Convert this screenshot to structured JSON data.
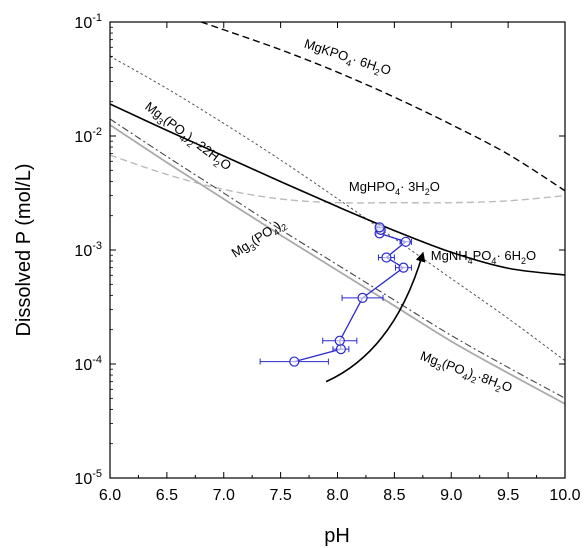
{
  "chart_data": {
    "type": "line",
    "xlabel": "pH",
    "ylabel": "Dissolved P (mol/L)",
    "xlim": [
      6.0,
      10.0
    ],
    "ylim": [
      1e-05,
      0.1
    ],
    "yscale": "log",
    "grid": false,
    "x_ticks": [
      "6.0",
      "6.5",
      "7.0",
      "7.5",
      "8.0",
      "8.5",
      "9.0",
      "9.5",
      "10.0"
    ],
    "x_tick_values": [
      6.0,
      6.5,
      7.0,
      7.5,
      8.0,
      8.5,
      9.0,
      9.5,
      10.0
    ],
    "y_ticks": [
      {
        "value": 1e-05,
        "base": "10",
        "exp": "-5"
      },
      {
        "value": 0.0001,
        "base": "10",
        "exp": "-4"
      },
      {
        "value": 0.001,
        "base": "10",
        "exp": "-3"
      },
      {
        "value": 0.01,
        "base": "10",
        "exp": "-2"
      },
      {
        "value": 0.1,
        "base": "10",
        "exp": "-1"
      }
    ],
    "series": [
      {
        "name": "MgKPO4· 6H2O",
        "style": "dashed",
        "color": "#000000",
        "label_parts": [
          [
            "MgKPO",
            ""
          ],
          [
            "4",
            "sub"
          ],
          [
            "· 6H",
            ""
          ],
          [
            "2",
            "sub"
          ],
          [
            "O",
            ""
          ]
        ],
        "label_at": [
          7.7,
          0.06
        ],
        "label_rotate": 18,
        "x": [
          6.8,
          7.0,
          7.5,
          8.0,
          8.5,
          9.0,
          9.5,
          10.0
        ],
        "y": [
          0.1,
          0.0855,
          0.0571,
          0.0363,
          0.0219,
          0.0126,
          0.00692,
          0.00331
        ]
      },
      {
        "name": "Mg3(PO4)2·22H2O",
        "style": "dotted",
        "color": "#555555",
        "label_parts": [
          [
            "Mg",
            ""
          ],
          [
            "3",
            "sub"
          ],
          [
            "(PO",
            ""
          ],
          [
            "4",
            "sub"
          ],
          [
            ")",
            ""
          ],
          [
            "2",
            "sub"
          ],
          [
            "·22H",
            ""
          ],
          [
            "2",
            "sub"
          ],
          [
            "O",
            ""
          ]
        ],
        "label_at": [
          6.3,
          0.0175
        ],
        "label_rotate": 37,
        "x": [
          6.0,
          6.5,
          7.0,
          7.5,
          8.0,
          8.5,
          9.0,
          9.5,
          10.0
        ],
        "y": [
          0.0501,
          0.0261,
          0.0129,
          0.00616,
          0.00282,
          0.00126,
          0.000562,
          0.000251,
          0.000107
        ]
      },
      {
        "name": "MgHPO4· 3H2O",
        "style": "dashed",
        "color": "#bbbbbb",
        "label_parts": [
          [
            "MgHPO",
            ""
          ],
          [
            "4",
            "sub"
          ],
          [
            "· 3H",
            ""
          ],
          [
            "2",
            "sub"
          ],
          [
            "O",
            ""
          ]
        ],
        "label_at": [
          8.1,
          0.0033
        ],
        "label_rotate": 0,
        "x": [
          6.0,
          6.5,
          7.0,
          7.5,
          8.0,
          8.5,
          9.0,
          9.5,
          10.0
        ],
        "y": [
          0.0068,
          0.0046,
          0.0034,
          0.0028,
          0.0026,
          0.0026,
          0.0026,
          0.0027,
          0.003
        ]
      },
      {
        "name": "MgNH4PO4· 6H2O",
        "style": "solid",
        "color": "#000000",
        "label_parts": [
          [
            "MgNH",
            ""
          ],
          [
            "4",
            "sub"
          ],
          [
            "PO",
            ""
          ],
          [
            "4",
            "sub"
          ],
          [
            "· 6H",
            ""
          ],
          [
            "2",
            "sub"
          ],
          [
            "O",
            ""
          ]
        ],
        "label_at": [
          8.82,
          0.00082
        ],
        "label_rotate": 0,
        "x": [
          6.0,
          6.5,
          7.0,
          7.5,
          8.0,
          8.5,
          9.0,
          9.5,
          10.0
        ],
        "y": [
          0.0191,
          0.0112,
          0.00668,
          0.00398,
          0.0024,
          0.00148,
          0.000955,
          0.000692,
          0.000603
        ]
      },
      {
        "name": "Mg3(PO4)2·8H2O",
        "style": "dashdot",
        "color": "#444444",
        "label_parts": [
          [
            "Mg",
            ""
          ],
          [
            "3",
            "sub"
          ],
          [
            "(PO",
            ""
          ],
          [
            "4",
            "sub"
          ],
          [
            ")",
            ""
          ],
          [
            "2",
            "sub"
          ],
          [
            "·8H",
            ""
          ],
          [
            "2",
            "sub"
          ],
          [
            "O",
            ""
          ]
        ],
        "label_at": [
          8.72,
          0.00011
        ],
        "label_rotate": 20,
        "x": [
          6.0,
          6.5,
          7.0,
          7.5,
          8.0,
          8.5,
          9.0,
          9.5,
          10.0
        ],
        "y": [
          0.0141,
          0.00661,
          0.00316,
          0.00151,
          0.000741,
          0.000363,
          0.000178,
          9.33e-05,
          5.01e-05
        ]
      },
      {
        "name": "Mg3(PO4)2",
        "style": "solid",
        "color": "#aaaaaa",
        "label_parts": [
          [
            "Mg",
            ""
          ],
          [
            "3",
            "sub"
          ],
          [
            "(PO",
            ""
          ],
          [
            "4",
            "sub"
          ],
          [
            ")",
            ""
          ],
          [
            "2",
            "sub"
          ]
        ],
        "label_at": [
          7.1,
          0.00085
        ],
        "label_rotate": -33,
        "x": [
          6.0,
          6.5,
          7.0,
          7.5,
          8.0,
          8.5,
          9.0,
          9.5,
          10.0
        ],
        "y": [
          0.0125,
          0.00586,
          0.0028,
          0.00135,
          0.000661,
          0.000324,
          0.000158,
          8.32e-05,
          4.47e-05
        ]
      },
      {
        "name": "",
        "style": "points",
        "color": "#2a2ad0",
        "points": [
          {
            "x": 7.62,
            "y": 0.000105,
            "xerr": 0.3
          },
          {
            "x": 8.03,
            "y": 0.000135,
            "xerr": 0.07
          },
          {
            "x": 8.02,
            "y": 0.00016,
            "xerr": 0.15
          },
          {
            "x": 8.22,
            "y": 0.00038,
            "xerr": 0.18
          },
          {
            "x": 8.58,
            "y": 0.0007,
            "xerr": 0.07
          },
          {
            "x": 8.43,
            "y": 0.00086,
            "xerr": 0.07
          },
          {
            "x": 8.6,
            "y": 0.00118,
            "xerr": 0.05
          },
          {
            "x": 8.37,
            "y": 0.0014,
            "xerr": 0.03
          },
          {
            "x": 8.38,
            "y": 0.0015,
            "xerr": 0.03
          },
          {
            "x": 8.37,
            "y": 0.00158,
            "xerr": 0.03
          }
        ]
      }
    ],
    "arrow": {
      "x": [
        7.9,
        8.5,
        8.75
      ],
      "y": [
        7e-05,
        0.00016,
        0.00093
      ]
    }
  }
}
